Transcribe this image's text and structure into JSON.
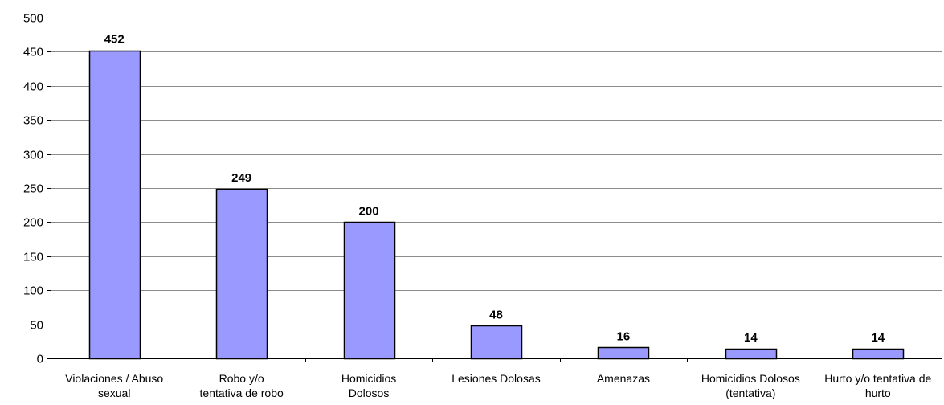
{
  "chart_data": {
    "type": "bar",
    "title": "",
    "xlabel": "",
    "ylabel": "",
    "ylim": [
      0,
      500
    ],
    "yticks": [
      0,
      50,
      100,
      150,
      200,
      250,
      300,
      350,
      400,
      450,
      500
    ],
    "grid": true,
    "legend": "none",
    "bar_color": "#9999ff",
    "bar_edge_color": "#000000",
    "categories": [
      [
        "Violaciones / Abuso",
        "sexual"
      ],
      [
        "Robo y/o",
        "tentativa de robo"
      ],
      [
        "Homicidios",
        "Dolosos"
      ],
      [
        "Lesiones Dolosas"
      ],
      [
        "Amenazas"
      ],
      [
        "Homicidios Dolosos",
        "(tentativa)"
      ],
      [
        "Hurto y/o tentativa de",
        "hurto"
      ]
    ],
    "values": [
      452,
      249,
      200,
      48,
      16,
      14,
      14
    ]
  }
}
